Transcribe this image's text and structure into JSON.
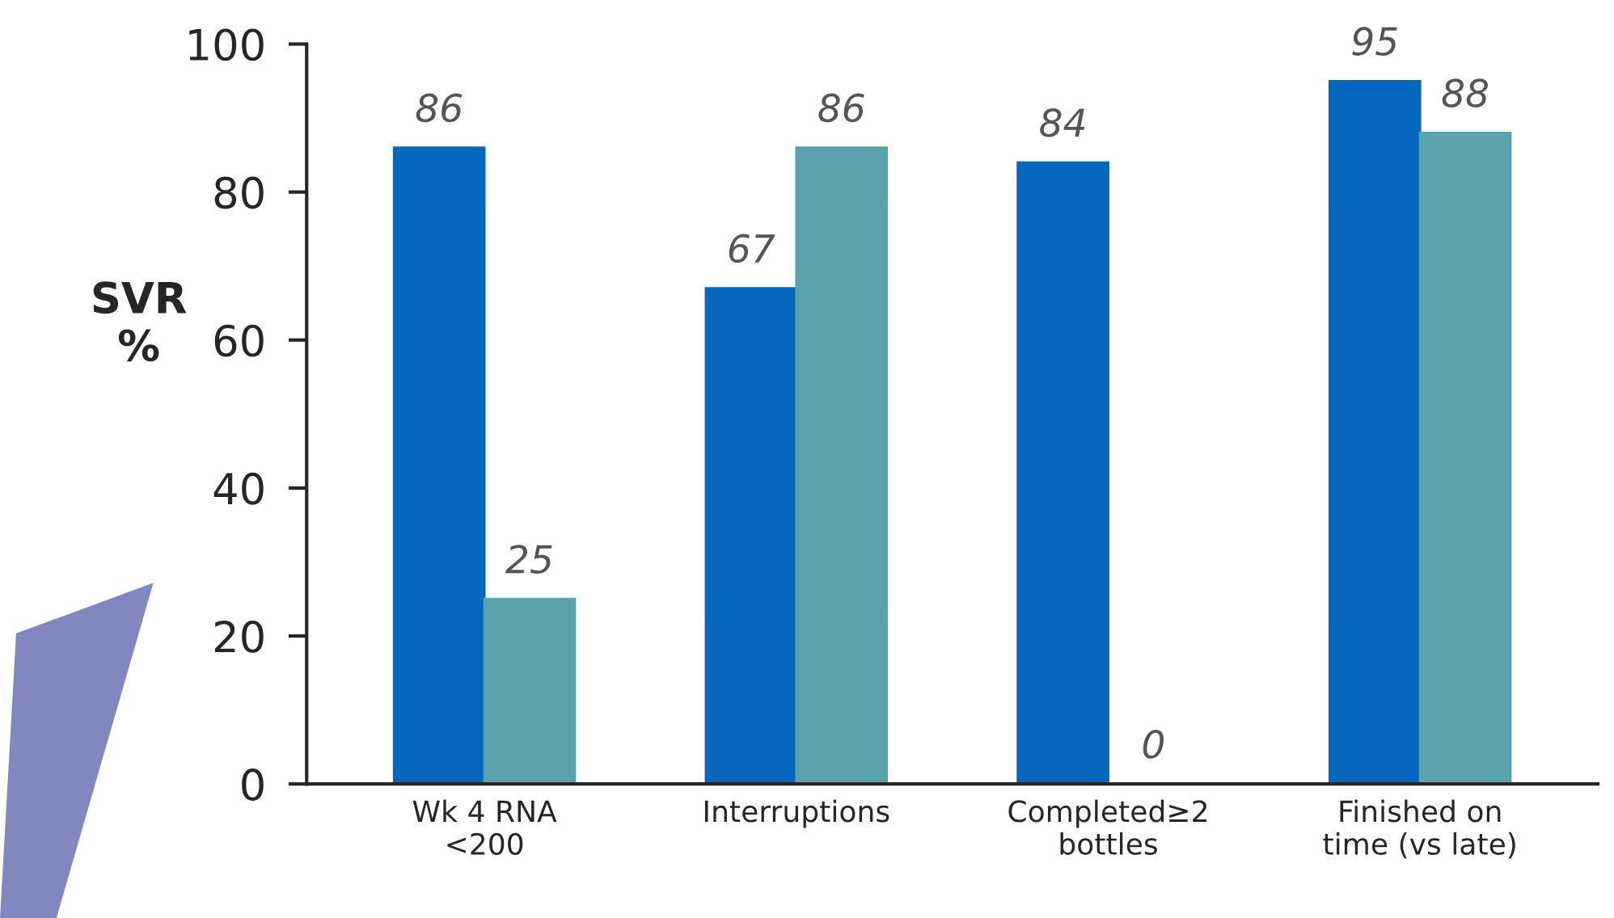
{
  "chart_data": {
    "type": "bar",
    "ylabel": "SVR\n%",
    "categories": [
      "Wk 4 RNA\n<200",
      "Interruptions",
      "Completed≥2\nbottles",
      "Finished on\ntime (vs late)"
    ],
    "series": [
      {
        "color": "#0568be",
        "values": [
          86,
          67,
          84,
          95
        ]
      },
      {
        "color": "#5aa3ac",
        "values": [
          25,
          86,
          0,
          88
        ]
      }
    ],
    "ylim": [
      0,
      100
    ],
    "yticks": [
      0,
      20,
      40,
      60,
      80,
      100
    ],
    "data_labels": true,
    "grid": false,
    "legend": false
  }
}
